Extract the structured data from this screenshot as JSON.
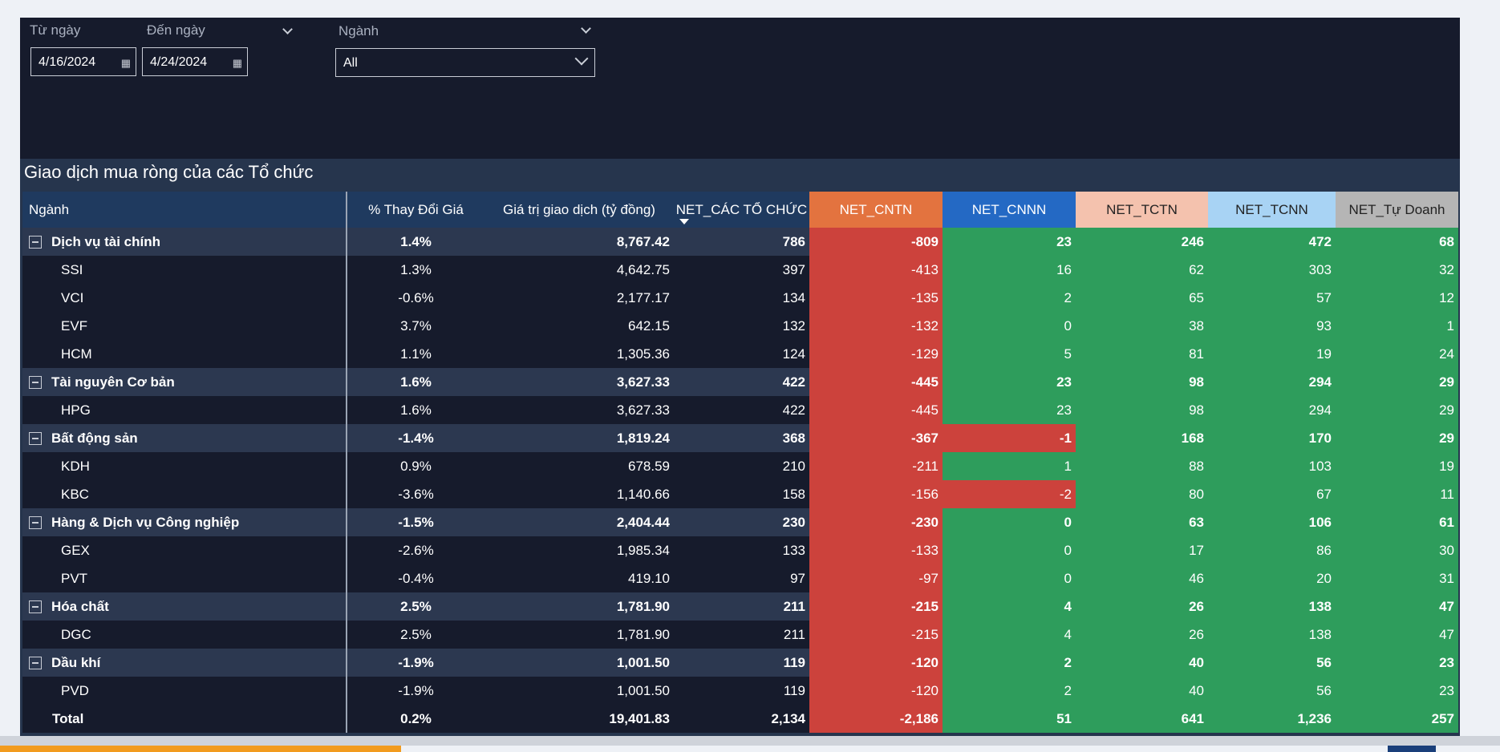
{
  "filters": {
    "from": {
      "label": "Từ ngày",
      "value": "4/16/2024",
      "icon": "calendar-icon"
    },
    "to": {
      "label": "Đến ngày",
      "value": "4/24/2024",
      "icon": "calendar-icon"
    },
    "industry": {
      "label": "Ngành",
      "value": "All"
    }
  },
  "table": {
    "title": "Giao dịch mua ròng của các Tổ chức",
    "headers": {
      "nganh": "Ngành",
      "pct": "% Thay Đổi Giá",
      "gtgd": "Giá trị giao dịch (tỷ đồng)",
      "net_to_chuc": "NET_CÁC TỔ CHỨC",
      "net_cntn": "NET_CNTN",
      "net_cnnn": "NET_CNNN",
      "net_tctn": "NET_TCTN",
      "net_tcnn": "NET_TCNN",
      "net_tu_doanh": "NET_Tự Doanh"
    },
    "header_colors": {
      "net_cntn": "#e3733f",
      "net_cnnn": "#2469c4",
      "net_tctn": "#f4c2ae",
      "net_tcnn": "#a8d3f4",
      "net_tu_doanh": "#b5b5b5"
    },
    "status_colors": {
      "positive": "#2e9d5c",
      "negative": "#cc423c"
    },
    "rows": [
      {
        "type": "group",
        "name": "Dịch vụ tài chính",
        "pct": "1.4%",
        "gtgd": "8,767.42",
        "net_tc": "786",
        "cntn": "-809",
        "cnnn": "23",
        "tctn": "246",
        "tcnn": "472",
        "tudoanh": "68"
      },
      {
        "type": "leaf",
        "name": "SSI",
        "pct": "1.3%",
        "gtgd": "4,642.75",
        "net_tc": "397",
        "cntn": "-413",
        "cnnn": "16",
        "tctn": "62",
        "tcnn": "303",
        "tudoanh": "32"
      },
      {
        "type": "leaf",
        "name": "VCI",
        "pct": "-0.6%",
        "gtgd": "2,177.17",
        "net_tc": "134",
        "cntn": "-135",
        "cnnn": "2",
        "tctn": "65",
        "tcnn": "57",
        "tudoanh": "12"
      },
      {
        "type": "leaf",
        "name": "EVF",
        "pct": "3.7%",
        "gtgd": "642.15",
        "net_tc": "132",
        "cntn": "-132",
        "cnnn": "0",
        "tctn": "38",
        "tcnn": "93",
        "tudoanh": "1"
      },
      {
        "type": "leaf",
        "name": "HCM",
        "pct": "1.1%",
        "gtgd": "1,305.36",
        "net_tc": "124",
        "cntn": "-129",
        "cnnn": "5",
        "tctn": "81",
        "tcnn": "19",
        "tudoanh": "24"
      },
      {
        "type": "group",
        "name": "Tài nguyên Cơ bản",
        "pct": "1.6%",
        "gtgd": "3,627.33",
        "net_tc": "422",
        "cntn": "-445",
        "cnnn": "23",
        "tctn": "98",
        "tcnn": "294",
        "tudoanh": "29"
      },
      {
        "type": "leaf",
        "name": "HPG",
        "pct": "1.6%",
        "gtgd": "3,627.33",
        "net_tc": "422",
        "cntn": "-445",
        "cnnn": "23",
        "tctn": "98",
        "tcnn": "294",
        "tudoanh": "29"
      },
      {
        "type": "group",
        "name": "Bất động sản",
        "pct": "-1.4%",
        "gtgd": "1,819.24",
        "net_tc": "368",
        "cntn": "-367",
        "cnnn": "-1",
        "tctn": "168",
        "tcnn": "170",
        "tudoanh": "29"
      },
      {
        "type": "leaf",
        "name": "KDH",
        "pct": "0.9%",
        "gtgd": "678.59",
        "net_tc": "210",
        "cntn": "-211",
        "cnnn": "1",
        "tctn": "88",
        "tcnn": "103",
        "tudoanh": "19"
      },
      {
        "type": "leaf",
        "name": "KBC",
        "pct": "-3.6%",
        "gtgd": "1,140.66",
        "net_tc": "158",
        "cntn": "-156",
        "cnnn": "-2",
        "tctn": "80",
        "tcnn": "67",
        "tudoanh": "11"
      },
      {
        "type": "group",
        "name": "Hàng & Dịch vụ Công nghiệp",
        "pct": "-1.5%",
        "gtgd": "2,404.44",
        "net_tc": "230",
        "cntn": "-230",
        "cnnn": "0",
        "tctn": "63",
        "tcnn": "106",
        "tudoanh": "61"
      },
      {
        "type": "leaf",
        "name": "GEX",
        "pct": "-2.6%",
        "gtgd": "1,985.34",
        "net_tc": "133",
        "cntn": "-133",
        "cnnn": "0",
        "tctn": "17",
        "tcnn": "86",
        "tudoanh": "30"
      },
      {
        "type": "leaf",
        "name": "PVT",
        "pct": "-0.4%",
        "gtgd": "419.10",
        "net_tc": "97",
        "cntn": "-97",
        "cnnn": "0",
        "tctn": "46",
        "tcnn": "20",
        "tudoanh": "31"
      },
      {
        "type": "group",
        "name": "Hóa chất",
        "pct": "2.5%",
        "gtgd": "1,781.90",
        "net_tc": "211",
        "cntn": "-215",
        "cnnn": "4",
        "tctn": "26",
        "tcnn": "138",
        "tudoanh": "47"
      },
      {
        "type": "leaf",
        "name": "DGC",
        "pct": "2.5%",
        "gtgd": "1,781.90",
        "net_tc": "211",
        "cntn": "-215",
        "cnnn": "4",
        "tctn": "26",
        "tcnn": "138",
        "tudoanh": "47"
      },
      {
        "type": "group",
        "name": "Dầu khí",
        "pct": "-1.9%",
        "gtgd": "1,001.50",
        "net_tc": "119",
        "cntn": "-120",
        "cnnn": "2",
        "tctn": "40",
        "tcnn": "56",
        "tudoanh": "23"
      },
      {
        "type": "leaf",
        "name": "PVD",
        "pct": "-1.9%",
        "gtgd": "1,001.50",
        "net_tc": "119",
        "cntn": "-120",
        "cnnn": "2",
        "tctn": "40",
        "tcnn": "56",
        "tudoanh": "23"
      },
      {
        "type": "total",
        "name": "Total",
        "pct": "0.2%",
        "gtgd": "19,401.83",
        "net_tc": "2,134",
        "cntn": "-2,186",
        "cnnn": "51",
        "tctn": "641",
        "tcnn": "1,236",
        "tudoanh": "257"
      }
    ]
  }
}
